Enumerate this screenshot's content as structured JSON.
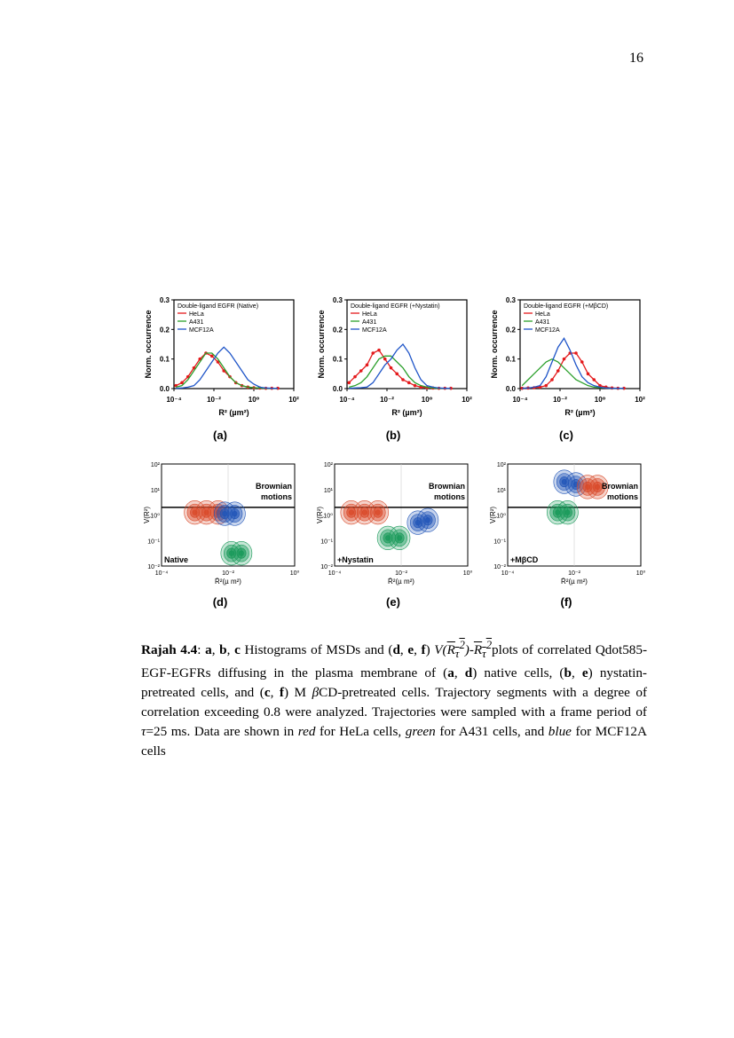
{
  "page": {
    "number": "16"
  },
  "figure": {
    "sublabels": [
      "(a)",
      "(b)",
      "(c)",
      "(d)",
      "(e)",
      "(f)"
    ],
    "chart_data": [
      {
        "type": "line",
        "panel": "a",
        "title": "Double-ligand EGFR (Native)",
        "xlabel": "R² (µm²)",
        "ylabel": "Norm. occurrence",
        "xscale": "log",
        "xlim": [
          -4,
          2
        ],
        "ylim": [
          0,
          0.3
        ],
        "xticks": [
          "10⁻⁴",
          "10⁻²",
          "10⁰",
          "10²"
        ],
        "yticks": [
          "0.0",
          "0.1",
          "0.2",
          "0.3"
        ],
        "x_log10": [
          -3.9,
          -3.6,
          -3.3,
          -3.0,
          -2.7,
          -2.4,
          -2.1,
          -1.8,
          -1.5,
          -1.2,
          -0.9,
          -0.6,
          -0.3,
          0.0,
          0.3,
          0.6,
          0.9,
          1.2
        ],
        "series": [
          {
            "name": "HeLa",
            "color": "#e41a1c",
            "values": [
              0.01,
              0.02,
              0.04,
              0.07,
              0.1,
              0.12,
              0.11,
              0.09,
              0.06,
              0.04,
              0.02,
              0.01,
              0.005,
              0.003,
              0.002,
              0.001,
              0.001,
              0.001
            ]
          },
          {
            "name": "A431",
            "color": "#2ca02c",
            "values": [
              0.005,
              0.01,
              0.03,
              0.06,
              0.09,
              0.12,
              0.12,
              0.1,
              0.07,
              0.04,
              0.02,
              0.01,
              0.005,
              0.003,
              0.002,
              0.001,
              0.001,
              0.001
            ]
          },
          {
            "name": "MCF12A",
            "color": "#1f55c8",
            "values": [
              0.001,
              0.002,
              0.005,
              0.01,
              0.03,
              0.06,
              0.09,
              0.12,
              0.14,
              0.12,
              0.09,
              0.06,
              0.03,
              0.015,
              0.005,
              0.002,
              0.001,
              0.001
            ]
          }
        ]
      },
      {
        "type": "line",
        "panel": "b",
        "title": "Double-ligand EGFR (+Nystatin)",
        "xlabel": "R² (µm²)",
        "ylabel": "Norm. occurrence",
        "xscale": "log",
        "xlim": [
          -4,
          2
        ],
        "ylim": [
          0,
          0.3
        ],
        "xticks": [
          "10⁻⁴",
          "10⁻²",
          "10⁰",
          "10²"
        ],
        "yticks": [
          "0.0",
          "0.1",
          "0.2",
          "0.3"
        ],
        "x_log10": [
          -3.9,
          -3.6,
          -3.3,
          -3.0,
          -2.7,
          -2.4,
          -2.1,
          -1.8,
          -1.5,
          -1.2,
          -0.9,
          -0.6,
          -0.3,
          0.0,
          0.3,
          0.6,
          0.9,
          1.2
        ],
        "series": [
          {
            "name": "HeLa",
            "color": "#e41a1c",
            "values": [
              0.02,
              0.04,
              0.06,
              0.08,
              0.12,
              0.13,
              0.1,
              0.07,
              0.05,
              0.03,
              0.02,
              0.01,
              0.005,
              0.003,
              0.002,
              0.001,
              0.001,
              0.001
            ]
          },
          {
            "name": "A431",
            "color": "#2ca02c",
            "values": [
              0.005,
              0.01,
              0.02,
              0.04,
              0.07,
              0.1,
              0.11,
              0.11,
              0.09,
              0.07,
              0.04,
              0.02,
              0.01,
              0.005,
              0.002,
              0.001,
              0.001,
              0.001
            ]
          },
          {
            "name": "MCF12A",
            "color": "#1f55c8",
            "values": [
              0.001,
              0.002,
              0.003,
              0.005,
              0.02,
              0.05,
              0.08,
              0.1,
              0.13,
              0.15,
              0.12,
              0.07,
              0.03,
              0.01,
              0.005,
              0.002,
              0.001,
              0.001
            ]
          }
        ]
      },
      {
        "type": "line",
        "panel": "c",
        "title": "Double-ligand EGFR (+MβCD)",
        "xlabel": "R² (µm²)",
        "ylabel": "Norm. occurrence",
        "xscale": "log",
        "xlim": [
          -4,
          2
        ],
        "ylim": [
          0,
          0.3
        ],
        "xticks": [
          "10⁻⁴",
          "10⁻²",
          "10⁰",
          "10²"
        ],
        "yticks": [
          "0.0",
          "0.1",
          "0.2",
          "0.3"
        ],
        "x_log10": [
          -3.9,
          -3.6,
          -3.3,
          -3.0,
          -2.7,
          -2.4,
          -2.1,
          -1.8,
          -1.5,
          -1.2,
          -0.9,
          -0.6,
          -0.3,
          0.0,
          0.3,
          0.6,
          0.9,
          1.2
        ],
        "series": [
          {
            "name": "HeLa",
            "color": "#e41a1c",
            "values": [
              0.001,
              0.002,
              0.003,
              0.005,
              0.01,
              0.03,
              0.06,
              0.1,
              0.12,
              0.12,
              0.09,
              0.05,
              0.03,
              0.01,
              0.005,
              0.002,
              0.001,
              0.001
            ]
          },
          {
            "name": "A431",
            "color": "#2ca02c",
            "values": [
              0.01,
              0.03,
              0.05,
              0.07,
              0.09,
              0.1,
              0.09,
              0.07,
              0.05,
              0.03,
              0.02,
              0.01,
              0.005,
              0.003,
              0.002,
              0.001,
              0.001,
              0.001
            ]
          },
          {
            "name": "MCF12A",
            "color": "#1f55c8",
            "values": [
              0.001,
              0.002,
              0.005,
              0.01,
              0.04,
              0.09,
              0.14,
              0.17,
              0.13,
              0.08,
              0.04,
              0.02,
              0.01,
              0.005,
              0.002,
              0.001,
              0.001,
              0.001
            ]
          }
        ]
      },
      {
        "type": "contour",
        "panel": "d",
        "annotation": "Native",
        "region_label": [
          "Brownian",
          "motions"
        ],
        "xlabel": "R̄²(µ m²)",
        "ylabel": "V(R²)",
        "xlim": [
          -4,
          0
        ],
        "ylim": [
          -2,
          2
        ],
        "xticks": [
          "10⁻⁴",
          "10⁻²",
          "10⁰"
        ],
        "yticks": [
          "10⁻²",
          "10⁻¹",
          "10⁰",
          "10¹",
          "10²"
        ],
        "threshold_log10": 0.3,
        "clusters": [
          {
            "name": "HeLa",
            "color": "#d94a2a",
            "centers_log10": [
              [
                -3.0,
                0.1
              ],
              [
                -2.65,
                0.1
              ],
              [
                -2.3,
                0.1
              ]
            ]
          },
          {
            "name": "MCF12A",
            "color": "#2256b8",
            "centers_log10": [
              [
                -2.1,
                0.05
              ],
              [
                -1.8,
                0.05
              ]
            ]
          },
          {
            "name": "A431",
            "color": "#1a9a5a",
            "centers_log10": [
              [
                -1.9,
                -1.5
              ],
              [
                -1.6,
                -1.5
              ]
            ]
          }
        ]
      },
      {
        "type": "contour",
        "panel": "e",
        "annotation": "+Nystatin",
        "region_label": [
          "Brownian",
          "motions"
        ],
        "xlabel": "R̄²(µ m²)",
        "ylabel": "V(R²)",
        "xlim": [
          -4,
          0
        ],
        "ylim": [
          -2,
          2
        ],
        "xticks": [
          "10⁻⁴",
          "10⁻²",
          "10⁰"
        ],
        "yticks": [
          "10⁻²",
          "10⁻¹",
          "10⁰",
          "10¹",
          "10²"
        ],
        "threshold_log10": 0.3,
        "clusters": [
          {
            "name": "HeLa",
            "color": "#d94a2a",
            "centers_log10": [
              [
                -3.5,
                0.1
              ],
              [
                -3.1,
                0.1
              ],
              [
                -2.7,
                0.1
              ]
            ]
          },
          {
            "name": "A431",
            "color": "#1a9a5a",
            "centers_log10": [
              [
                -2.4,
                -0.9
              ],
              [
                -2.05,
                -0.9
              ]
            ]
          },
          {
            "name": "MCF12A",
            "color": "#2256b8",
            "centers_log10": [
              [
                -1.5,
                -0.3
              ],
              [
                -1.2,
                -0.2
              ]
            ]
          }
        ]
      },
      {
        "type": "contour",
        "panel": "f",
        "annotation": "+MβCD",
        "region_label": [
          "Brownian",
          "motions"
        ],
        "xlabel": "R̄²(µ m²)",
        "ylabel": "V(R²)",
        "xlim": [
          -4,
          0
        ],
        "ylim": [
          -2,
          2
        ],
        "xticks": [
          "10⁻⁴",
          "10⁻²",
          "10⁰"
        ],
        "yticks": [
          "10⁻²",
          "10⁻¹",
          "10⁰",
          "10¹",
          "10²"
        ],
        "threshold_log10": 0.3,
        "clusters": [
          {
            "name": "MCF12A",
            "color": "#2256b8",
            "centers_log10": [
              [
                -2.3,
                1.3
              ],
              [
                -1.95,
                1.2
              ]
            ]
          },
          {
            "name": "HeLa",
            "color": "#d94a2a",
            "centers_log10": [
              [
                -1.6,
                1.1
              ],
              [
                -1.3,
                1.1
              ]
            ]
          },
          {
            "name": "A431",
            "color": "#1a9a5a",
            "centers_log10": [
              [
                -2.5,
                0.1
              ],
              [
                -2.2,
                0.1
              ]
            ]
          }
        ]
      }
    ]
  },
  "caption": {
    "label": "Rajah 4.4",
    "p1": ": ",
    "a": "a",
    "sep1": ", ",
    "b": "b",
    "sep2": ", ",
    "c": "c",
    "p2": " Histograms of MSDs and (",
    "d": "d",
    "sep3": ", ",
    "e": "e",
    "sep4": ", ",
    "f": "f",
    "p3": ") ",
    "math_v": "V(",
    "math_r1": "R",
    "math_sub1": "τ",
    "math_sup1": "2",
    "math_mid": ")-",
    "math_r2": "R",
    "math_sub2": "τ",
    "math_sup2": "2",
    "p4": "plots of correlated Qdot585-EGF-EGFRs diffusing in the plasma membrane of (",
    "a2": "a",
    "sep5": ", ",
    "d2": "d",
    "p5": ") native cells, (",
    "b2": "b",
    "sep6": ", ",
    "e2": "e",
    "p6": ") nystatin-pretreated cells, and (",
    "c2": "c",
    "sep7": ", ",
    "f2": "f",
    "p7": ") M ",
    "beta": "β",
    "p8": "CD-pretreated cells. Trajectory segments with a degree of correlation exceeding 0.8 were analyzed. Trajectories were sampled with a frame period of ",
    "tau": "τ",
    "p9": "=25 ms. Data are shown in ",
    "red": "red",
    "p10": " for HeLa cells, ",
    "green": "green",
    "p11": " for A431 cells, and ",
    "blue": "blue",
    "p12": " for MCF12A cells"
  }
}
